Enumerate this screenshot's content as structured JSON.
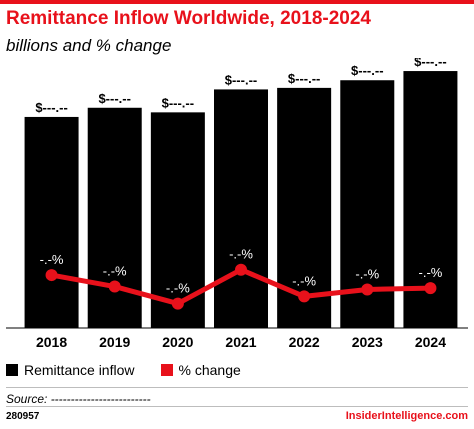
{
  "header": {
    "title": "Remittance Inflow Worldwide, 2018-2024",
    "subtitle": "billions and % change"
  },
  "colors": {
    "accent": "#e8111b",
    "bar": "#000000",
    "line": "#e8111b"
  },
  "chart_data": {
    "type": "bar",
    "categories": [
      "2018",
      "2019",
      "2020",
      "2021",
      "2022",
      "2023",
      "2024"
    ],
    "series": [
      {
        "name": "Remittance inflow",
        "kind": "bar",
        "values": [
          690,
          720,
          705,
          780,
          785,
          810,
          840
        ],
        "labels": [
          "$---.--",
          "$---.--",
          "$---.--",
          "$---.--",
          "$---.--",
          "$---.--",
          "$---.--"
        ]
      },
      {
        "name": "% change",
        "kind": "line",
        "values": [
          8.6,
          4.3,
          -2.1,
          10.6,
          0.6,
          3.2,
          3.7
        ],
        "labels": [
          "-.-%",
          "-.-%",
          "-.-%",
          "-.-%",
          "-.-%",
          "-.-%",
          "-.-%"
        ]
      }
    ],
    "ylim": [
      0,
      850
    ],
    "line_ylim": [
      -12,
      45
    ],
    "legend": "bottom-left",
    "grid": false
  },
  "legend": {
    "items": [
      "Remittance inflow",
      "% change"
    ]
  },
  "source": {
    "text": "Source: -------------------------"
  },
  "footer": {
    "id": "280957",
    "brand": "InsiderIntelligence.com"
  }
}
